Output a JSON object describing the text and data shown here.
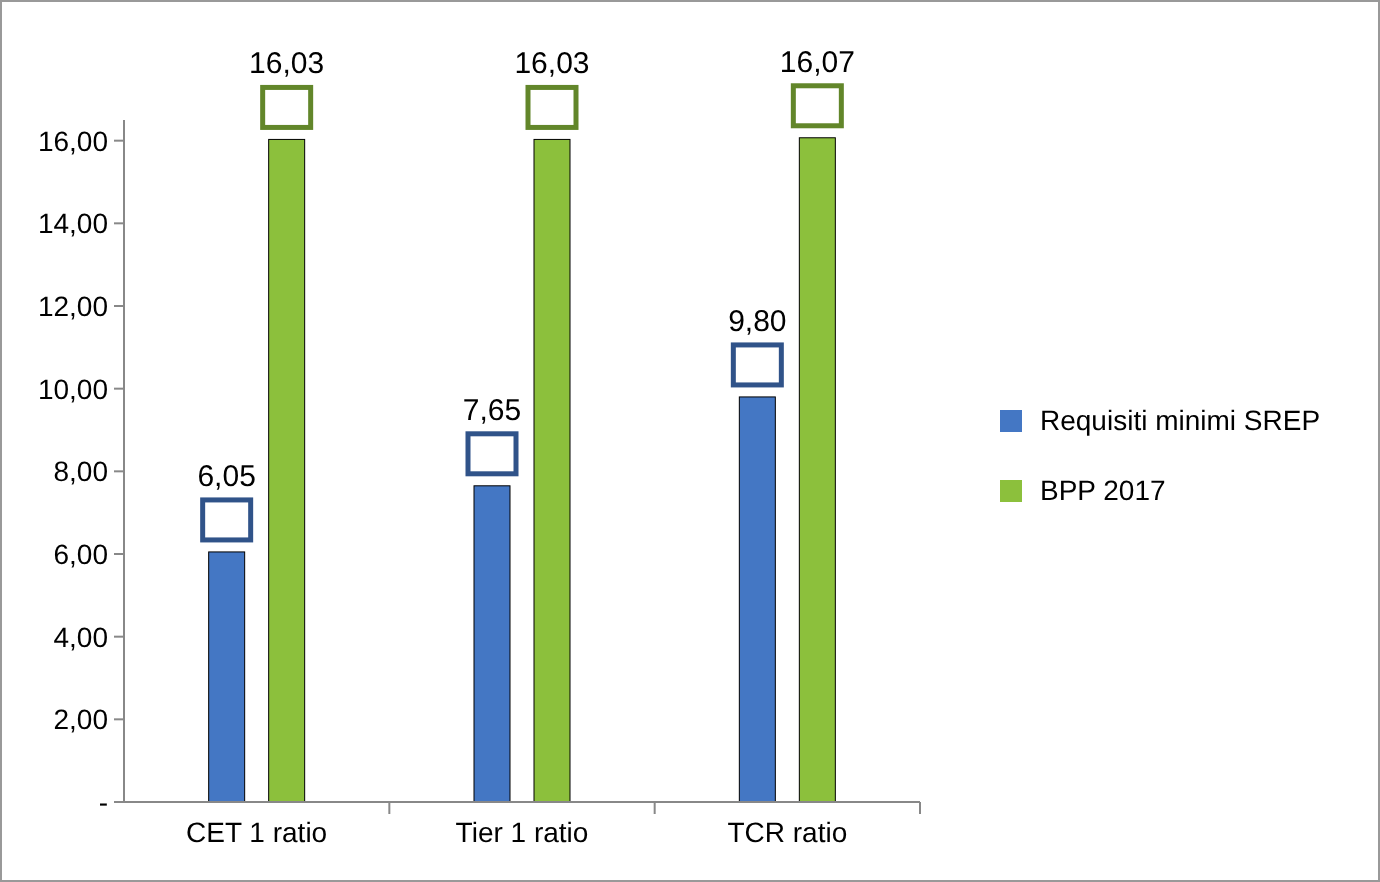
{
  "chart_data": {
    "type": "bar",
    "categories": [
      "CET 1 ratio",
      "Tier 1 ratio",
      "TCR ratio"
    ],
    "series": [
      {
        "name": "Requisiti minimi SREP",
        "color": "#4477c4",
        "values": [
          6.05,
          7.65,
          9.8
        ],
        "value_labels": [
          "6,05",
          "7,65",
          "9,80"
        ]
      },
      {
        "name": "BPP 2017",
        "color": "#8cc03c",
        "values": [
          16.03,
          16.03,
          16.07
        ],
        "value_labels": [
          "16,03",
          "16,03",
          "16,07"
        ]
      }
    ],
    "ylim": [
      0,
      16.5
    ],
    "yticks": [
      {
        "value": 0,
        "label": "-"
      },
      {
        "value": 2,
        "label": "2,00"
      },
      {
        "value": 4,
        "label": "4,00"
      },
      {
        "value": 6,
        "label": "6,00"
      },
      {
        "value": 8,
        "label": "8,00"
      },
      {
        "value": 10,
        "label": "10,00"
      },
      {
        "value": 12,
        "label": "12,00"
      },
      {
        "value": 14,
        "label": "14,00"
      },
      {
        "value": 16,
        "label": "16,00"
      }
    ],
    "legend": "right",
    "grid": false
  }
}
